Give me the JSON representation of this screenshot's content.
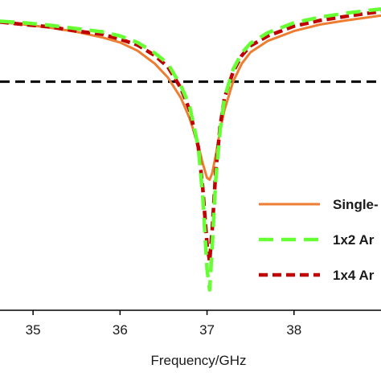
{
  "chart_data": {
    "type": "line",
    "xlabel": "Frequency/GHz",
    "ylabel": "",
    "xlim": [
      34.62,
      39.0
    ],
    "ylim": [
      -38,
      0
    ],
    "x_ticks": [
      35,
      36,
      37,
      38
    ],
    "x_tick_labels": [
      "35",
      "36",
      "37",
      "38"
    ],
    "grid": false,
    "legend_placement": "bottom-right",
    "reference_line": {
      "y": -10,
      "color": "#000000",
      "style": "dashed"
    },
    "series": [
      {
        "name": "Single-",
        "color": "#ed7d31",
        "style": "solid",
        "x": [
          34.62,
          34.9,
          35.2,
          35.5,
          35.8,
          36.0,
          36.2,
          36.4,
          36.55,
          36.7,
          36.8,
          36.9,
          36.95,
          37.0,
          37.03,
          37.06,
          37.1,
          37.15,
          37.2,
          37.3,
          37.4,
          37.5,
          37.7,
          38.0,
          38.3,
          38.6,
          39.0
        ],
        "y": [
          -2.7,
          -3.0,
          -3.4,
          -3.9,
          -4.6,
          -5.2,
          -6.2,
          -7.8,
          -9.5,
          -12.0,
          -14.5,
          -17.8,
          -20.0,
          -21.8,
          -22.0,
          -21.2,
          -19.0,
          -16.0,
          -13.5,
          -10.0,
          -7.8,
          -6.4,
          -5.0,
          -3.8,
          -3.0,
          -2.5,
          -1.9
        ]
      },
      {
        "name": "1x2 Ar",
        "color": "#66ff33",
        "style": "dashed",
        "x": [
          34.62,
          34.9,
          35.2,
          35.5,
          35.8,
          36.0,
          36.2,
          36.4,
          36.55,
          36.7,
          36.8,
          36.9,
          36.95,
          37.0,
          37.03,
          37.06,
          37.1,
          37.15,
          37.2,
          37.3,
          37.4,
          37.5,
          37.7,
          38.0,
          38.3,
          38.6,
          39.0
        ],
        "y": [
          -2.6,
          -2.8,
          -3.1,
          -3.5,
          -3.9,
          -4.4,
          -5.2,
          -6.5,
          -7.8,
          -10.5,
          -13.0,
          -18.0,
          -24.0,
          -33.0,
          -35.5,
          -30.0,
          -22.0,
          -16.0,
          -12.0,
          -8.5,
          -6.5,
          -5.3,
          -4.0,
          -2.8,
          -2.1,
          -1.6,
          -1.1
        ]
      },
      {
        "name": "1x4 Ar",
        "color": "#c00000",
        "style": "dashed",
        "x": [
          34.62,
          34.9,
          35.2,
          35.5,
          35.8,
          36.0,
          36.2,
          36.4,
          36.55,
          36.7,
          36.8,
          36.9,
          36.95,
          37.0,
          37.03,
          37.06,
          37.1,
          37.15,
          37.2,
          37.3,
          37.4,
          37.5,
          37.7,
          38.0,
          38.3,
          38.6,
          39.0
        ],
        "y": [
          -2.7,
          -3.0,
          -3.3,
          -3.8,
          -4.2,
          -4.8,
          -5.5,
          -6.8,
          -8.2,
          -10.8,
          -13.5,
          -18.0,
          -23.0,
          -30.0,
          -32.0,
          -28.0,
          -21.0,
          -15.5,
          -12.0,
          -8.8,
          -6.8,
          -5.6,
          -4.4,
          -3.2,
          -2.5,
          -2.0,
          -1.4
        ]
      }
    ]
  }
}
